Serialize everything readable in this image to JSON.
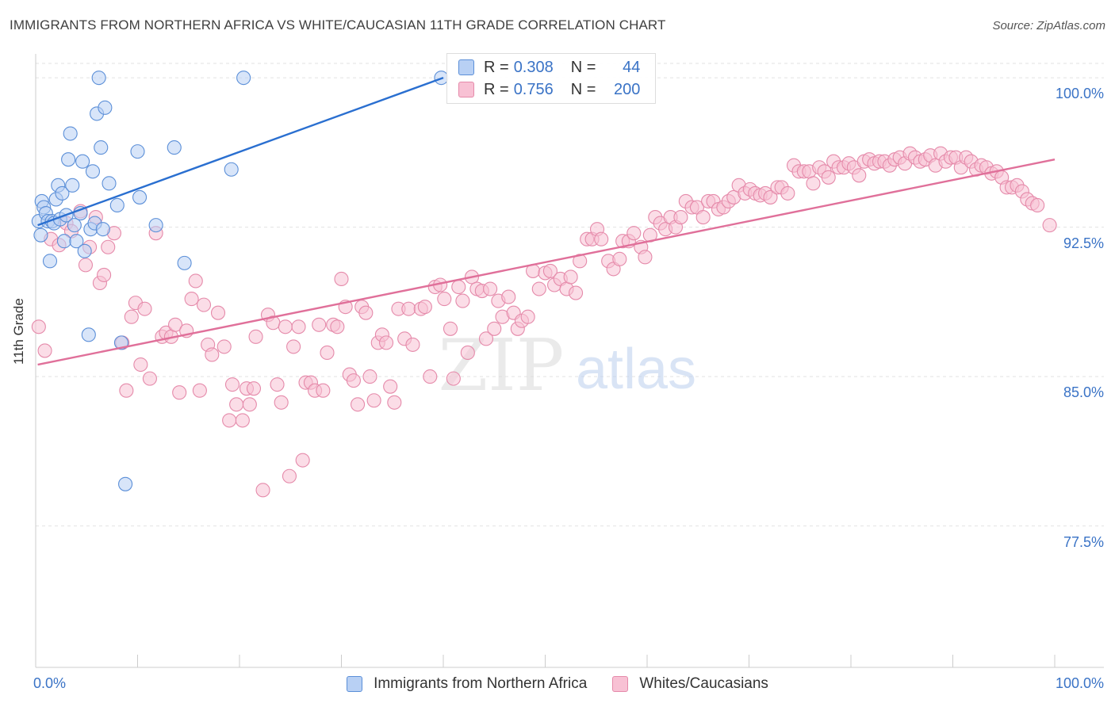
{
  "title": "IMMIGRANTS FROM NORTHERN AFRICA VS WHITE/CAUCASIAN 11TH GRADE CORRELATION CHART",
  "source": "Source: ZipAtlas.com",
  "watermark": {
    "zip": "ZIP",
    "atlas": "atlas"
  },
  "legend_top": {
    "rows": [
      {
        "r_label": "R =",
        "r_value": "0.308",
        "n_label": "N =",
        "n_value": "44"
      },
      {
        "r_label": "R =",
        "r_value": "0.756",
        "n_label": "N =",
        "n_value": "200"
      }
    ]
  },
  "colors": {
    "blue_fill": "#b8d0f4",
    "blue_stroke": "#5b8fd8",
    "blue_line": "#2a6fd0",
    "pink_fill": "#f8c1d4",
    "pink_stroke": "#e58aaa",
    "pink_line": "#e0709a",
    "tick_text": "#3a73c6",
    "grid": "#e2e2e2"
  },
  "chart_data": {
    "type": "scatter",
    "title": "IMMIGRANTS FROM NORTHERN AFRICA VS WHITE/CAUCASIAN 11TH GRADE CORRELATION CHART",
    "xlabel": "",
    "ylabel": "11th Grade",
    "xlim": [
      0,
      100
    ],
    "ylim": [
      70.4,
      101.2
    ],
    "y_ticks": [
      77.5,
      85.0,
      92.5,
      100.0
    ],
    "y_tick_labels": [
      "77.5%",
      "85.0%",
      "92.5%",
      "100.0%"
    ],
    "x_tick_labels": [
      "0.0%",
      "100.0%"
    ],
    "grid": true,
    "legend_position": "bottom",
    "series": [
      {
        "name": "Immigrants from Northern Africa",
        "R": 0.308,
        "N": 44,
        "trend": {
          "x": [
            0.2,
            40.0
          ],
          "y": [
            92.6,
            100.0
          ]
        },
        "points": [
          [
            0.3,
            92.8
          ],
          [
            0.5,
            92.1
          ],
          [
            0.6,
            93.8
          ],
          [
            0.8,
            93.5
          ],
          [
            1.0,
            93.2
          ],
          [
            1.2,
            92.8
          ],
          [
            1.4,
            90.8
          ],
          [
            1.6,
            92.8
          ],
          [
            1.8,
            92.7
          ],
          [
            2.0,
            93.9
          ],
          [
            2.2,
            94.6
          ],
          [
            2.4,
            92.9
          ],
          [
            2.6,
            94.2
          ],
          [
            2.8,
            91.8
          ],
          [
            3.0,
            93.1
          ],
          [
            3.2,
            95.9
          ],
          [
            3.4,
            97.2
          ],
          [
            3.6,
            94.6
          ],
          [
            3.8,
            92.6
          ],
          [
            4.0,
            91.8
          ],
          [
            4.4,
            93.2
          ],
          [
            4.6,
            95.8
          ],
          [
            4.8,
            91.3
          ],
          [
            5.2,
            87.1
          ],
          [
            5.4,
            92.4
          ],
          [
            5.6,
            95.3
          ],
          [
            5.8,
            92.7
          ],
          [
            6.0,
            98.2
          ],
          [
            6.2,
            100.0
          ],
          [
            6.4,
            96.5
          ],
          [
            6.6,
            92.4
          ],
          [
            6.8,
            98.5
          ],
          [
            7.2,
            94.7
          ],
          [
            8.0,
            93.6
          ],
          [
            8.4,
            86.7
          ],
          [
            8.8,
            79.6
          ],
          [
            10.0,
            96.3
          ],
          [
            10.2,
            94.0
          ],
          [
            11.8,
            92.6
          ],
          [
            13.6,
            96.5
          ],
          [
            14.6,
            90.7
          ],
          [
            19.2,
            95.4
          ],
          [
            20.4,
            100.0
          ],
          [
            39.8,
            100.0
          ]
        ]
      },
      {
        "name": "Whites/Caucasians",
        "R": 0.756,
        "N": 200,
        "trend": {
          "x": [
            0.2,
            100.0
          ],
          "y": [
            85.6,
            95.9
          ]
        },
        "points": [
          [
            0.3,
            87.5
          ],
          [
            0.9,
            86.3
          ],
          [
            1.5,
            91.9
          ],
          [
            2.3,
            91.6
          ],
          [
            3.0,
            92.7
          ],
          [
            3.5,
            92.3
          ],
          [
            4.4,
            93.3
          ],
          [
            4.9,
            90.6
          ],
          [
            5.3,
            91.5
          ],
          [
            5.9,
            93.0
          ],
          [
            6.3,
            89.7
          ],
          [
            6.7,
            90.1
          ],
          [
            7.1,
            91.5
          ],
          [
            7.7,
            92.2
          ],
          [
            8.5,
            86.7
          ],
          [
            8.9,
            84.3
          ],
          [
            9.4,
            88.0
          ],
          [
            9.8,
            88.7
          ],
          [
            10.3,
            85.6
          ],
          [
            10.7,
            88.4
          ],
          [
            11.2,
            84.9
          ],
          [
            11.8,
            92.2
          ],
          [
            12.4,
            87.0
          ],
          [
            12.8,
            87.2
          ],
          [
            13.3,
            87.0
          ],
          [
            13.7,
            87.6
          ],
          [
            14.1,
            84.2
          ],
          [
            14.8,
            87.3
          ],
          [
            15.3,
            88.9
          ],
          [
            15.7,
            89.8
          ],
          [
            16.1,
            84.3
          ],
          [
            16.5,
            88.6
          ],
          [
            16.9,
            86.6
          ],
          [
            17.3,
            86.1
          ],
          [
            17.9,
            88.2
          ],
          [
            18.5,
            86.5
          ],
          [
            19.0,
            82.8
          ],
          [
            19.3,
            84.6
          ],
          [
            19.7,
            83.6
          ],
          [
            20.3,
            82.8
          ],
          [
            20.7,
            84.4
          ],
          [
            21.0,
            83.6
          ],
          [
            21.4,
            84.4
          ],
          [
            21.6,
            87.0
          ],
          [
            22.3,
            79.3
          ],
          [
            22.8,
            88.1
          ],
          [
            23.3,
            87.7
          ],
          [
            23.7,
            84.6
          ],
          [
            24.1,
            83.7
          ],
          [
            24.5,
            87.5
          ],
          [
            24.9,
            80.0
          ],
          [
            25.3,
            86.5
          ],
          [
            25.8,
            87.5
          ],
          [
            26.2,
            80.8
          ],
          [
            26.5,
            84.7
          ],
          [
            27.0,
            84.7
          ],
          [
            27.4,
            84.3
          ],
          [
            27.8,
            87.6
          ],
          [
            28.2,
            84.3
          ],
          [
            28.6,
            86.2
          ],
          [
            29.2,
            87.6
          ],
          [
            29.6,
            87.5
          ],
          [
            30.0,
            89.9
          ],
          [
            30.4,
            88.5
          ],
          [
            30.8,
            85.1
          ],
          [
            31.2,
            84.8
          ],
          [
            31.6,
            83.6
          ],
          [
            32.0,
            88.5
          ],
          [
            32.4,
            88.2
          ],
          [
            32.8,
            85.0
          ],
          [
            33.2,
            83.8
          ],
          [
            33.6,
            86.7
          ],
          [
            34.0,
            87.1
          ],
          [
            34.4,
            86.7
          ],
          [
            34.8,
            84.5
          ],
          [
            35.2,
            83.7
          ],
          [
            35.6,
            88.4
          ],
          [
            36.2,
            86.9
          ],
          [
            36.6,
            88.4
          ],
          [
            37.0,
            86.6
          ],
          [
            37.8,
            88.4
          ],
          [
            38.2,
            88.5
          ],
          [
            38.7,
            85.0
          ],
          [
            39.2,
            89.5
          ],
          [
            39.7,
            89.6
          ],
          [
            40.1,
            88.9
          ],
          [
            40.7,
            87.4
          ],
          [
            41.0,
            84.9
          ],
          [
            41.5,
            89.5
          ],
          [
            41.9,
            88.8
          ],
          [
            42.4,
            86.2
          ],
          [
            42.8,
            90.0
          ],
          [
            43.3,
            89.4
          ],
          [
            43.8,
            89.3
          ],
          [
            44.2,
            86.9
          ],
          [
            44.6,
            89.4
          ],
          [
            45.0,
            87.4
          ],
          [
            45.4,
            88.8
          ],
          [
            45.8,
            88.0
          ],
          [
            46.4,
            89.0
          ],
          [
            46.9,
            88.2
          ],
          [
            47.3,
            87.4
          ],
          [
            47.7,
            87.8
          ],
          [
            48.3,
            88.0
          ],
          [
            48.8,
            90.3
          ],
          [
            49.4,
            89.4
          ],
          [
            50.0,
            90.2
          ],
          [
            50.5,
            90.3
          ],
          [
            50.9,
            89.6
          ],
          [
            51.5,
            89.9
          ],
          [
            52.1,
            89.4
          ],
          [
            52.5,
            90.0
          ],
          [
            53.0,
            89.2
          ],
          [
            53.4,
            90.8
          ],
          [
            54.1,
            91.9
          ],
          [
            54.6,
            91.9
          ],
          [
            55.1,
            92.4
          ],
          [
            55.5,
            91.9
          ],
          [
            56.2,
            90.8
          ],
          [
            56.7,
            90.4
          ],
          [
            57.3,
            90.9
          ],
          [
            57.6,
            91.8
          ],
          [
            58.2,
            91.8
          ],
          [
            58.7,
            92.2
          ],
          [
            59.4,
            91.5
          ],
          [
            59.8,
            91.0
          ],
          [
            60.3,
            92.1
          ],
          [
            60.8,
            93.0
          ],
          [
            61.3,
            92.7
          ],
          [
            61.8,
            92.4
          ],
          [
            62.3,
            93.0
          ],
          [
            62.8,
            92.5
          ],
          [
            63.3,
            93.0
          ],
          [
            63.8,
            93.8
          ],
          [
            64.4,
            93.5
          ],
          [
            64.9,
            93.5
          ],
          [
            65.5,
            93.0
          ],
          [
            66.0,
            93.8
          ],
          [
            66.5,
            93.8
          ],
          [
            67.0,
            93.4
          ],
          [
            67.5,
            93.5
          ],
          [
            68.0,
            93.8
          ],
          [
            68.5,
            94.0
          ],
          [
            69.0,
            94.6
          ],
          [
            69.6,
            94.2
          ],
          [
            70.1,
            94.4
          ],
          [
            70.6,
            94.2
          ],
          [
            71.1,
            94.1
          ],
          [
            71.6,
            94.2
          ],
          [
            72.1,
            94.0
          ],
          [
            72.8,
            94.5
          ],
          [
            73.2,
            94.5
          ],
          [
            73.8,
            94.2
          ],
          [
            74.4,
            95.6
          ],
          [
            74.9,
            95.3
          ],
          [
            75.4,
            95.3
          ],
          [
            75.9,
            95.3
          ],
          [
            76.3,
            94.7
          ],
          [
            76.9,
            95.5
          ],
          [
            77.4,
            95.3
          ],
          [
            77.8,
            95.0
          ],
          [
            78.3,
            95.8
          ],
          [
            78.8,
            95.5
          ],
          [
            79.3,
            95.5
          ],
          [
            79.8,
            95.7
          ],
          [
            80.3,
            95.5
          ],
          [
            80.8,
            95.1
          ],
          [
            81.3,
            95.8
          ],
          [
            81.8,
            95.9
          ],
          [
            82.3,
            95.7
          ],
          [
            82.8,
            95.8
          ],
          [
            83.3,
            95.8
          ],
          [
            83.8,
            95.6
          ],
          [
            84.3,
            95.9
          ],
          [
            84.8,
            96.0
          ],
          [
            85.3,
            95.7
          ],
          [
            85.8,
            96.2
          ],
          [
            86.3,
            96.0
          ],
          [
            86.8,
            95.8
          ],
          [
            87.3,
            95.9
          ],
          [
            87.8,
            96.1
          ],
          [
            88.3,
            95.6
          ],
          [
            88.8,
            96.2
          ],
          [
            89.3,
            95.8
          ],
          [
            89.8,
            96.0
          ],
          [
            90.3,
            96.0
          ],
          [
            90.8,
            95.5
          ],
          [
            91.3,
            96.0
          ],
          [
            91.8,
            95.8
          ],
          [
            92.3,
            95.4
          ],
          [
            92.8,
            95.6
          ],
          [
            93.3,
            95.5
          ],
          [
            93.8,
            95.2
          ],
          [
            94.3,
            95.3
          ],
          [
            94.8,
            95.0
          ],
          [
            95.3,
            94.5
          ],
          [
            95.8,
            94.5
          ],
          [
            96.3,
            94.6
          ],
          [
            96.8,
            94.3
          ],
          [
            97.3,
            93.9
          ],
          [
            97.8,
            93.7
          ],
          [
            98.3,
            93.6
          ],
          [
            99.5,
            92.6
          ]
        ]
      }
    ]
  },
  "legend_bottom": [
    {
      "label": "Immigrants from Northern Africa"
    },
    {
      "label": "Whites/Caucasians"
    }
  ]
}
